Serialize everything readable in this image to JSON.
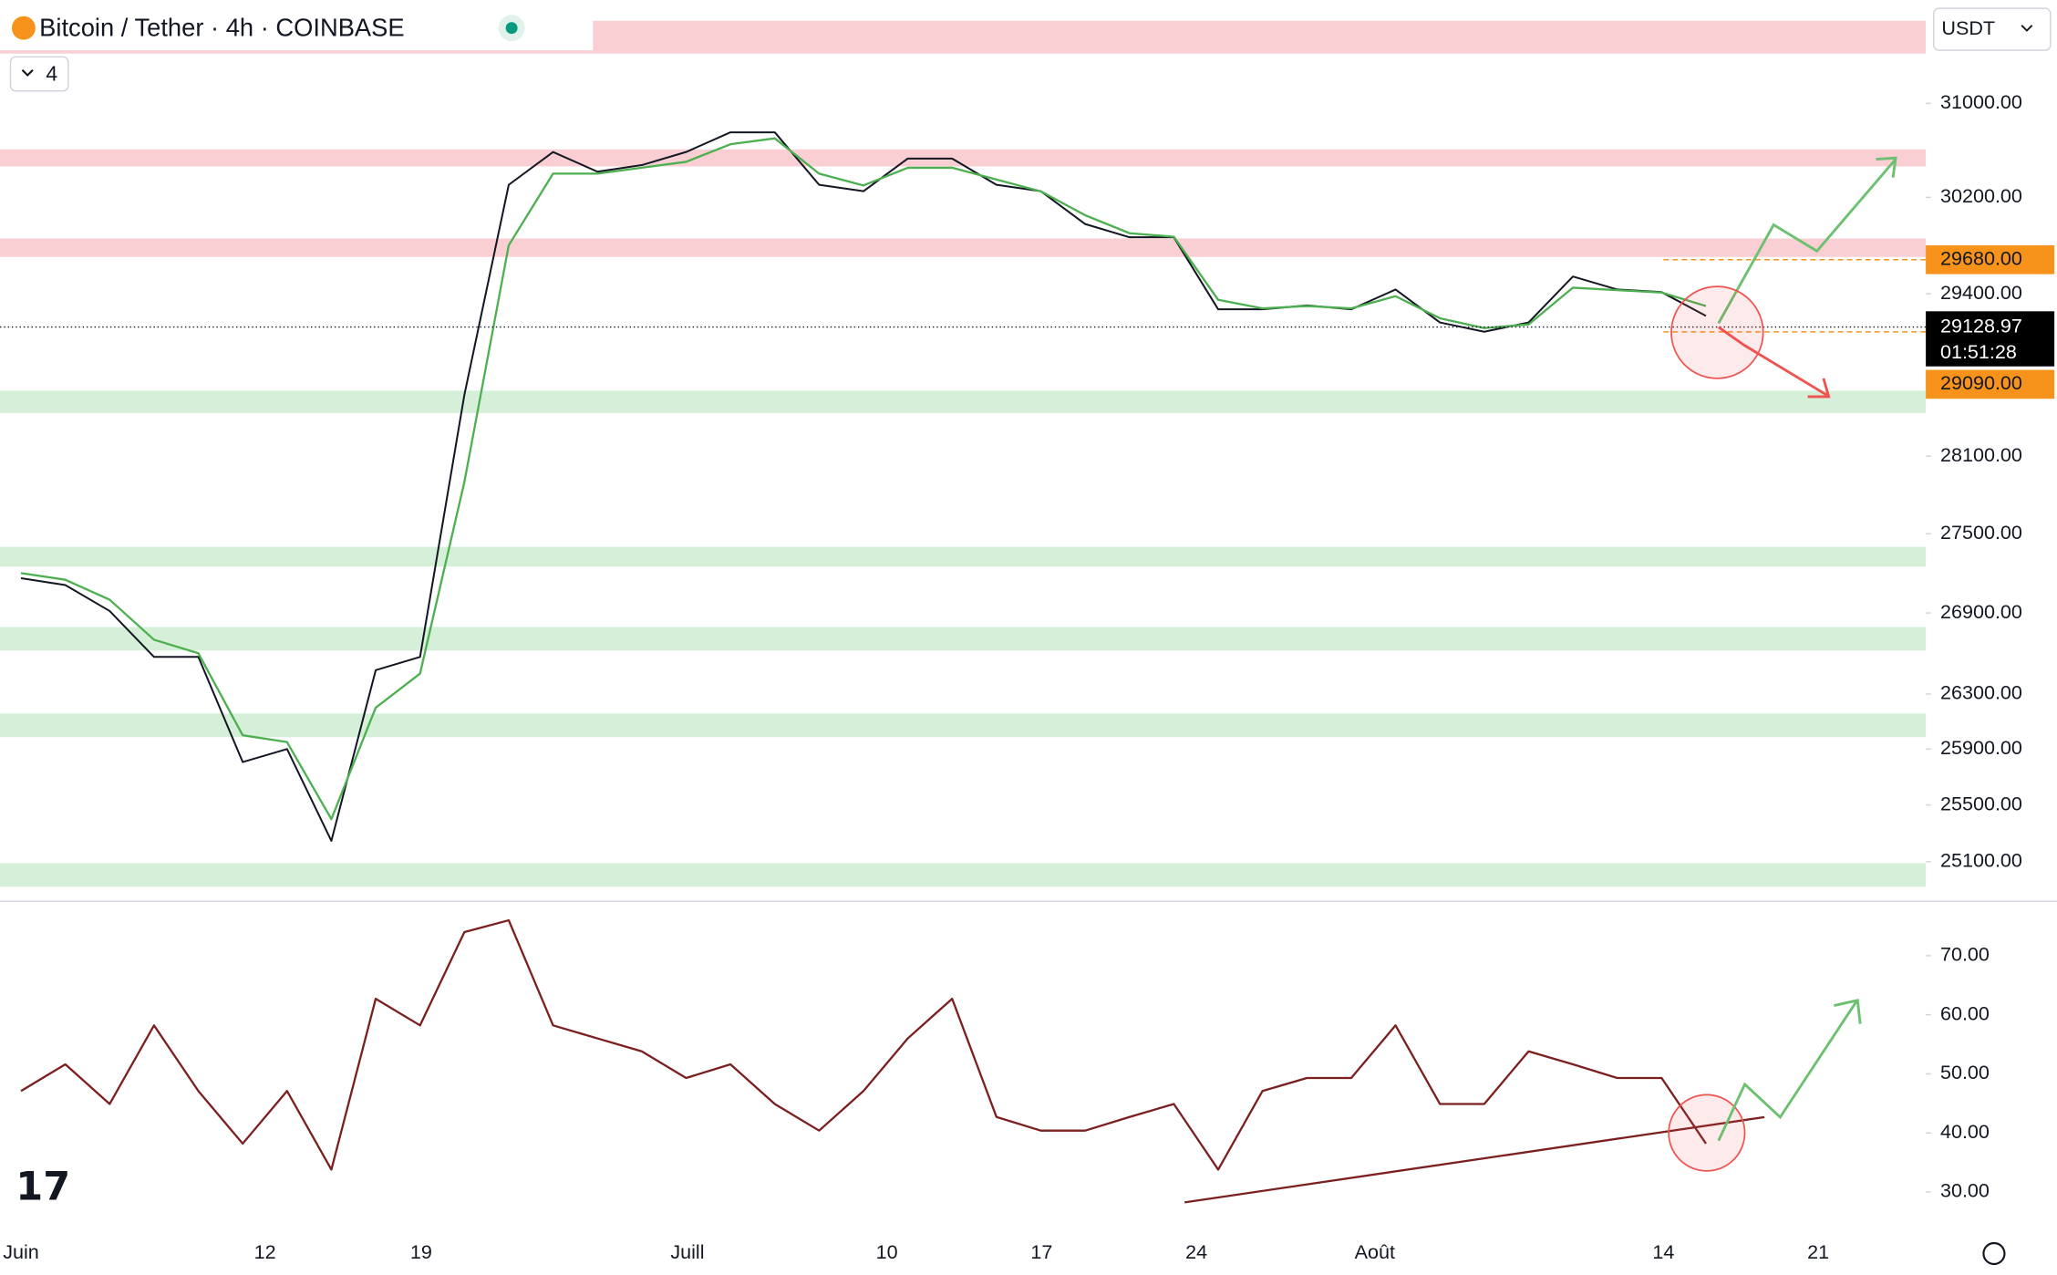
{
  "header": {
    "title": "Bitcoin / Tether · 4h · COINBASE",
    "indicator_count": 4,
    "currency": "USDT"
  },
  "chart_data": [
    {
      "type": "line",
      "log": true,
      "ylim": [
        24830,
        31890
      ],
      "yticks": [
        {
          "value": 31000,
          "label": "31000.00"
        },
        {
          "value": 30200,
          "label": "30200.00"
        },
        {
          "value": 29400,
          "label": "29400.00"
        },
        {
          "value": 28100,
          "label": "28100.00"
        },
        {
          "value": 27500,
          "label": "27500.00"
        },
        {
          "value": 26900,
          "label": "26900.00"
        },
        {
          "value": 26300,
          "label": "26300.00"
        },
        {
          "value": 25900,
          "label": "25900.00"
        },
        {
          "value": 25500,
          "label": "25500.00"
        },
        {
          "value": 25100,
          "label": "25100.00"
        }
      ],
      "series": [
        {
          "color": "#131722",
          "values": [
            27162,
            27110,
            26915,
            26573,
            26573,
            25807,
            25900,
            25246,
            26475,
            26573,
            28585,
            30306,
            30584,
            30417,
            30472,
            30584,
            30752,
            30752,
            30306,
            30251,
            30528,
            30528,
            30306,
            30251,
            29976,
            29866,
            29866,
            29273,
            29273,
            29305,
            29273,
            29435,
            29166,
            29091,
            29166,
            29542,
            29435,
            29413,
            29220
          ]
        },
        {
          "color": "#4caf50",
          "values": [
            27200,
            27150,
            27000,
            26700,
            26600,
            26000,
            25950,
            25400,
            26200,
            26450,
            27900,
            29800,
            30400,
            30400,
            30450,
            30500,
            30650,
            30700,
            30400,
            30300,
            30450,
            30450,
            30350,
            30250,
            30050,
            29900,
            29870,
            29350,
            29280,
            29300,
            29280,
            29380,
            29200,
            29120,
            29150,
            29450,
            29430,
            29410,
            29300
          ]
        }
      ],
      "zones": [
        {
          "from": 31433,
          "to": 31721,
          "color": "#f9cfd3"
        },
        {
          "from": 30461,
          "to": 30606,
          "color": "#f9cfd3"
        },
        {
          "from": 29703,
          "to": 29856,
          "color": "#f9cfd3"
        },
        {
          "from": 28440,
          "to": 28617,
          "color": "#d5efd8"
        },
        {
          "from": 27250,
          "to": 27400,
          "color": "#d5efd8"
        },
        {
          "from": 26620,
          "to": 26795,
          "color": "#d5efd8"
        },
        {
          "from": 25986,
          "to": 26157,
          "color": "#d5efd8"
        },
        {
          "from": 24926,
          "to": 25090,
          "color": "#d5efd8"
        }
      ],
      "price_lines": [
        {
          "value": 29680,
          "label": "29680.00",
          "color": "#f7931a"
        },
        {
          "value": 29090,
          "label": "29090.00",
          "color": "#f7931a"
        }
      ],
      "current": {
        "value": 29128.97,
        "countdown": "01:51:28"
      },
      "xlabels": [
        "Juin",
        "12",
        "19",
        "Juill",
        "10",
        "17",
        "24",
        "Août",
        "14",
        "21"
      ]
    },
    {
      "type": "line",
      "ylim": [
        23.8,
        79.1
      ],
      "yticks": [
        {
          "value": 70,
          "label": "70.00"
        },
        {
          "value": 60,
          "label": "60.00"
        },
        {
          "value": 50,
          "label": "50.00"
        },
        {
          "value": 40,
          "label": "40.00"
        },
        {
          "value": 30,
          "label": "30.00"
        }
      ],
      "series": [
        {
          "color": "#7b1f1f",
          "values": [
            47.1,
            51.6,
            44.9,
            58.2,
            47.1,
            38.2,
            47.1,
            33.8,
            62.7,
            58.2,
            74,
            76,
            58.2,
            56,
            53.8,
            49.3,
            51.6,
            44.9,
            40.4,
            47.1,
            56,
            62.7,
            42.7,
            40.4,
            40.4,
            42.7,
            44.9,
            33.8,
            47.1,
            49.3,
            49.3,
            58.2,
            44.9,
            44.9,
            53.8,
            51.6,
            49.3,
            49.3,
            38.2
          ]
        }
      ]
    }
  ]
}
